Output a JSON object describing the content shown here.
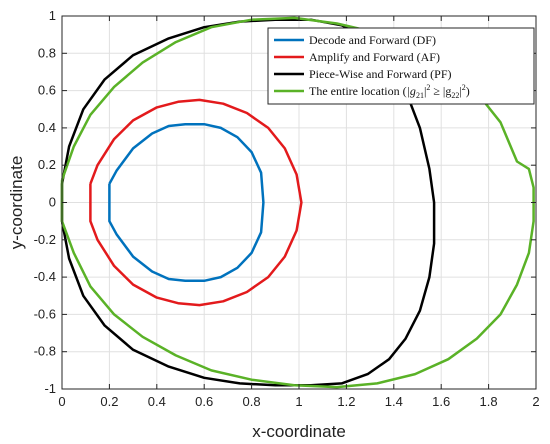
{
  "chart_data": {
    "type": "line",
    "xlabel": "x-coordinate",
    "ylabel": "y-coordinate",
    "xlim": [
      0,
      2
    ],
    "ylim": [
      -1,
      1
    ],
    "xticks": [
      0,
      0.2,
      0.4,
      0.6,
      0.8,
      1,
      1.2,
      1.4,
      1.6,
      1.8,
      2
    ],
    "yticks": [
      -1,
      -0.8,
      -0.6,
      -0.4,
      -0.2,
      0,
      0.2,
      0.4,
      0.6,
      0.8,
      1
    ],
    "grid": true,
    "legend_position": "top-right",
    "series": [
      {
        "name": "Decode and Forward (DF)",
        "color": "#0072BD",
        "x": [
          0.2,
          0.23,
          0.3,
          0.38,
          0.45,
          0.52,
          0.6,
          0.67,
          0.74,
          0.8,
          0.84,
          0.85,
          0.84,
          0.8,
          0.74,
          0.67,
          0.6,
          0.52,
          0.45,
          0.38,
          0.3,
          0.23,
          0.2,
          0.2
        ],
        "y": [
          0.1,
          0.17,
          0.29,
          0.37,
          0.41,
          0.42,
          0.42,
          0.4,
          0.35,
          0.27,
          0.16,
          0.0,
          -0.16,
          -0.27,
          -0.35,
          -0.4,
          -0.42,
          -0.42,
          -0.41,
          -0.37,
          -0.29,
          -0.17,
          -0.1,
          0.1
        ]
      },
      {
        "name": "Amplify and Forward (AF)",
        "color": "#E31A1C",
        "x": [
          0.12,
          0.15,
          0.22,
          0.3,
          0.4,
          0.49,
          0.58,
          0.68,
          0.78,
          0.87,
          0.94,
          0.99,
          1.01,
          0.99,
          0.94,
          0.87,
          0.78,
          0.68,
          0.58,
          0.49,
          0.4,
          0.3,
          0.22,
          0.15,
          0.12,
          0.12
        ],
        "y": [
          0.1,
          0.2,
          0.34,
          0.44,
          0.51,
          0.54,
          0.55,
          0.53,
          0.48,
          0.4,
          0.29,
          0.15,
          0.0,
          -0.15,
          -0.29,
          -0.4,
          -0.48,
          -0.53,
          -0.55,
          -0.54,
          -0.51,
          -0.44,
          -0.34,
          -0.2,
          -0.1,
          0.1
        ]
      },
      {
        "name": "Piece-Wise and Forward (PF)",
        "color": "#000000",
        "x": [
          0.0,
          0.03,
          0.09,
          0.18,
          0.3,
          0.45,
          0.6,
          0.75,
          0.9,
          1.05,
          1.18,
          1.29,
          1.38,
          1.45,
          1.51,
          1.55,
          1.57,
          1.57,
          1.55,
          1.51,
          1.45,
          1.38,
          1.29,
          1.18,
          1.05,
          0.9,
          0.75,
          0.6,
          0.45,
          0.3,
          0.18,
          0.09,
          0.03,
          0.0,
          0.0
        ],
        "y": [
          0.1,
          0.3,
          0.5,
          0.66,
          0.79,
          0.88,
          0.94,
          0.97,
          0.98,
          0.98,
          0.95,
          0.88,
          0.76,
          0.6,
          0.4,
          0.18,
          0.0,
          -0.22,
          -0.4,
          -0.58,
          -0.73,
          -0.84,
          -0.92,
          -0.97,
          -0.98,
          -0.98,
          -0.97,
          -0.94,
          -0.88,
          -0.79,
          -0.66,
          -0.5,
          -0.3,
          -0.1,
          0.1
        ]
      },
      {
        "name": "The entire location (|g21|2 ≥ |g22|2)",
        "color": "#5AB227",
        "x": [
          0.0,
          0.05,
          0.12,
          0.22,
          0.34,
          0.48,
          0.63,
          0.8,
          0.98,
          1.16,
          1.33,
          1.49,
          1.63,
          1.75,
          1.85,
          1.92,
          1.97,
          1.99,
          1.99,
          1.97,
          1.92,
          1.85,
          1.75,
          1.63,
          1.49,
          1.33,
          1.16,
          0.98,
          0.8,
          0.63,
          0.48,
          0.34,
          0.22,
          0.12,
          0.05,
          0.0,
          0.0
        ],
        "y": [
          0.12,
          0.3,
          0.47,
          0.62,
          0.75,
          0.86,
          0.94,
          0.98,
          0.99,
          0.96,
          0.91,
          0.84,
          0.73,
          0.59,
          0.43,
          0.22,
          0.18,
          0.08,
          -0.1,
          -0.27,
          -0.44,
          -0.6,
          -0.73,
          -0.84,
          -0.92,
          -0.97,
          -0.99,
          -0.98,
          -0.95,
          -0.9,
          -0.82,
          -0.72,
          -0.6,
          -0.45,
          -0.27,
          -0.1,
          0.12
        ]
      }
    ],
    "legend_entries": [
      "Decode and Forward (DF)",
      "Amplify and Forward (AF)",
      "Piece-Wise and Forward (PF)",
      "The entire location ("
    ],
    "legend_formula": {
      "g1": "|g",
      "s1": "21",
      "e1": "|",
      "p1": "2",
      "ge": " ≥ |g",
      "s2": "22",
      "e2": "|",
      "p2": "2",
      "close": ")"
    }
  }
}
